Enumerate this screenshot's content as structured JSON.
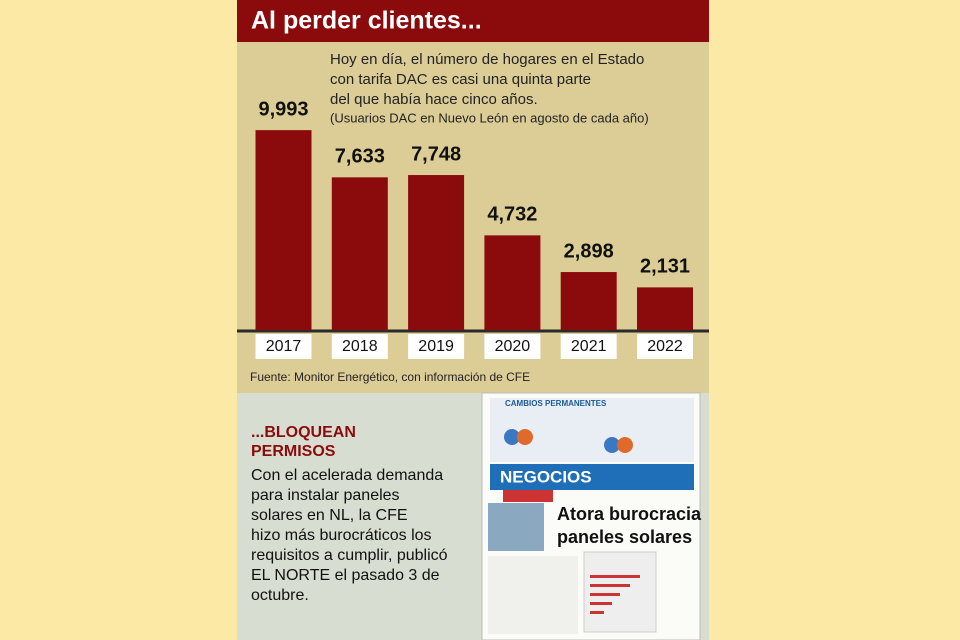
{
  "chart_data": {
    "type": "bar",
    "title": "Al perder clientes...",
    "subtitle": [
      "Hoy en día, el número de hogares en el Estado",
      "con tarifa DAC es casi una quinta parte",
      "del que había hace cinco años."
    ],
    "note": "(Usuarios DAC en Nuevo León en agosto de cada año)",
    "categories": [
      "2017",
      "2018",
      "2019",
      "2020",
      "2021",
      "2022"
    ],
    "values": [
      9993,
      7633,
      7748,
      4732,
      2898,
      2131
    ],
    "value_labels": [
      "9,993",
      "7,633",
      "7,748",
      "4,732",
      "2,898",
      "2,131"
    ],
    "color": "#8b0a0c",
    "source": "Fuente: Monitor Energético, con información de CFE"
  },
  "story": {
    "heading": [
      "...BLOQUEAN",
      "PERMISOS"
    ],
    "body": [
      "Con el acelerada demanda",
      "para instalar paneles",
      "solares en NL, la CFE",
      "hizo más burocráticos los",
      "requisitos a cumplir, publicó",
      "EL NORTE el pasado 3 de",
      "octubre."
    ],
    "clipping": {
      "banner": "CAMBIOS PERMANENTES",
      "section": "NEGOCIOS",
      "headline": [
        "Atora burocracia",
        "paneles solares"
      ]
    }
  }
}
